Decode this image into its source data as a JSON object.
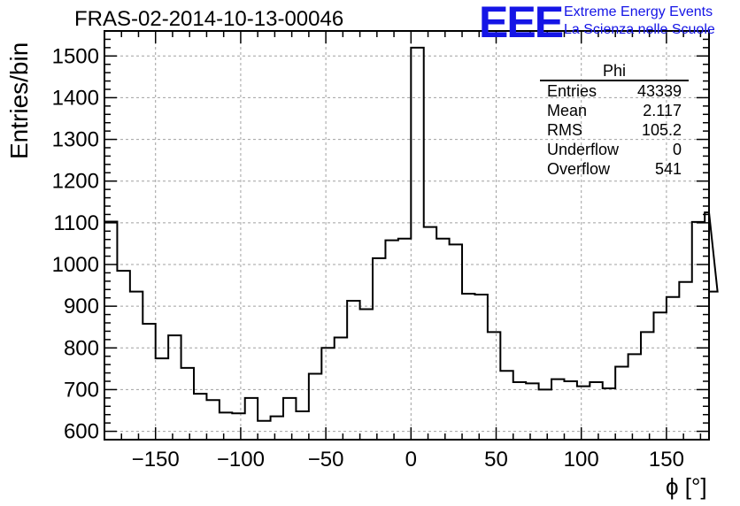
{
  "header": {
    "title": "FRAS-02-2014-10-13-00046",
    "logo": "EEE",
    "logo_line1": "Extreme Energy Events",
    "logo_line2": "La Scienza nelle Scuole"
  },
  "stats": {
    "name": "Phi",
    "rows": [
      {
        "label": "Entries",
        "value": "43339"
      },
      {
        "label": "Mean",
        "value": "2.117"
      },
      {
        "label": "RMS",
        "value": "105.2"
      },
      {
        "label": "Underflow",
        "value": "0"
      },
      {
        "label": "Overflow",
        "value": "541"
      }
    ]
  },
  "chart_data": {
    "type": "histogram",
    "title": "FRAS-02-2014-10-13-00046",
    "xlabel": "ϕ [°]",
    "ylabel": "Entries/bin",
    "xlim": [
      -180,
      175
    ],
    "ylim": [
      580,
      1560
    ],
    "grid": true,
    "x_ticks": [
      -150,
      -100,
      -50,
      0,
      50,
      100,
      150
    ],
    "y_ticks": [
      600,
      700,
      800,
      900,
      1000,
      1100,
      1200,
      1300,
      1400,
      1500
    ],
    "bin_width": 7.5,
    "bin_start": -180,
    "values": [
      1103,
      985,
      935,
      858,
      775,
      830,
      752,
      690,
      675,
      645,
      643,
      680,
      625,
      636,
      680,
      648,
      738,
      800,
      825,
      913,
      893,
      1015,
      1058,
      1062,
      1520,
      1090,
      1062,
      1048,
      930,
      928,
      838,
      745,
      718,
      715,
      700,
      725,
      720,
      708,
      718,
      703,
      755,
      785,
      838,
      885,
      922,
      958,
      1102,
      1125,
      935
    ]
  },
  "colors": {
    "line": "#000000",
    "grid": "#a0a0a0",
    "logo": "#1515e6"
  }
}
